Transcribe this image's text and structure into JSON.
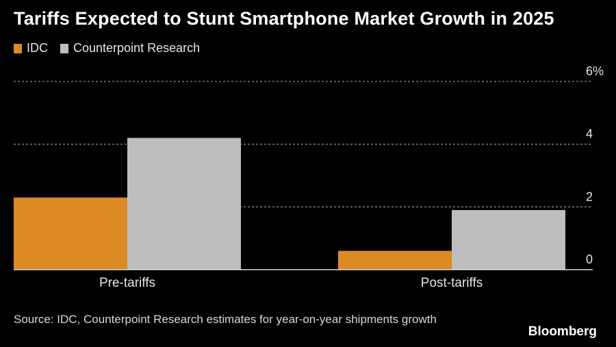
{
  "chart_data": {
    "type": "bar",
    "title": "Tariffs Expected to Stunt Smartphone Market Growth in 2025",
    "categories": [
      "Pre-tariffs",
      "Post-tariffs"
    ],
    "series": [
      {
        "name": "IDC",
        "color": "#DC8A24",
        "values": [
          2.3,
          0.6
        ]
      },
      {
        "name": "Counterpoint Research",
        "color": "#BEBEBE",
        "values": [
          4.2,
          1.9
        ]
      }
    ],
    "xlabel": "",
    "ylabel": "",
    "ylim": [
      0,
      6
    ],
    "yticks": [
      0,
      2,
      4,
      6
    ],
    "ytick_labels": [
      "0",
      "2",
      "4",
      "6%"
    ],
    "grid": true,
    "legend": "top-left",
    "y_axis_side": "right"
  },
  "footer": {
    "source": "Source: IDC, Counterpoint Research estimates for year-on-year shipments growth",
    "brand": "Bloomberg"
  }
}
